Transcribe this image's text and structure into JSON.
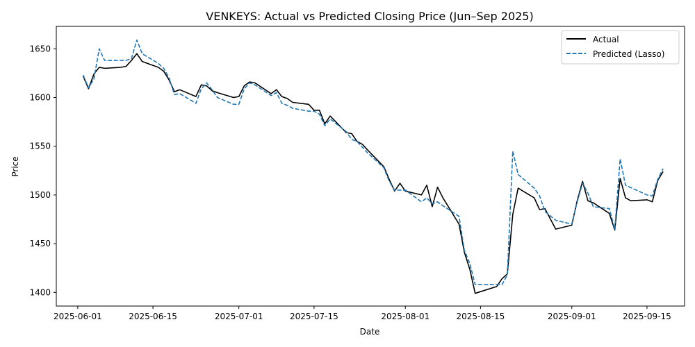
{
  "chart_data": {
    "type": "line",
    "title": "VENKEYS: Actual vs Predicted Closing Price (Jun–Sep 2025)",
    "xlabel": "Date",
    "ylabel": "Price",
    "xlim": [
      "2025-05-28",
      "2025-09-22"
    ],
    "ylim": [
      1386,
      1673
    ],
    "x_ticks": [
      "2025-06-01",
      "2025-06-15",
      "2025-07-01",
      "2025-07-15",
      "2025-08-01",
      "2025-08-15",
      "2025-09-01",
      "2025-09-15"
    ],
    "y_ticks": [
      1400,
      1450,
      1500,
      1550,
      1600,
      1650
    ],
    "grid": false,
    "legend_position": "top-right",
    "colors": {
      "Actual": "#000000",
      "Predicted (Lasso)": "#1f77b4"
    },
    "series": [
      {
        "name": "Actual",
        "style": "solid",
        "points": [
          [
            "2025-06-02",
            1622
          ],
          [
            "2025-06-03",
            1609
          ],
          [
            "2025-06-04",
            1624
          ],
          [
            "2025-06-05",
            1631
          ],
          [
            "2025-06-06",
            1630
          ],
          [
            "2025-06-09",
            1631
          ],
          [
            "2025-06-10",
            1632
          ],
          [
            "2025-06-11",
            1638
          ],
          [
            "2025-06-12",
            1645
          ],
          [
            "2025-06-13",
            1637
          ],
          [
            "2025-06-16",
            1631
          ],
          [
            "2025-06-17",
            1627
          ],
          [
            "2025-06-18",
            1618
          ],
          [
            "2025-06-19",
            1606
          ],
          [
            "2025-06-20",
            1608
          ],
          [
            "2025-06-23",
            1601
          ],
          [
            "2025-06-24",
            1613
          ],
          [
            "2025-06-25",
            1612
          ],
          [
            "2025-06-26",
            1607
          ],
          [
            "2025-06-27",
            1605
          ],
          [
            "2025-06-30",
            1600
          ],
          [
            "2025-07-01",
            1601
          ],
          [
            "2025-07-02",
            1612
          ],
          [
            "2025-07-03",
            1616
          ],
          [
            "2025-07-04",
            1615
          ],
          [
            "2025-07-07",
            1604
          ],
          [
            "2025-07-08",
            1608
          ],
          [
            "2025-07-09",
            1601
          ],
          [
            "2025-07-10",
            1599
          ],
          [
            "2025-07-11",
            1595
          ],
          [
            "2025-07-14",
            1593
          ],
          [
            "2025-07-15",
            1587
          ],
          [
            "2025-07-16",
            1587
          ],
          [
            "2025-07-17",
            1573
          ],
          [
            "2025-07-18",
            1581
          ],
          [
            "2025-07-21",
            1564
          ],
          [
            "2025-07-22",
            1563
          ],
          [
            "2025-07-23",
            1555
          ],
          [
            "2025-07-24",
            1552
          ],
          [
            "2025-07-25",
            1546
          ],
          [
            "2025-07-28",
            1529
          ],
          [
            "2025-07-29",
            1516
          ],
          [
            "2025-07-30",
            1504
          ],
          [
            "2025-07-31",
            1512
          ],
          [
            "2025-08-01",
            1504
          ],
          [
            "2025-08-04",
            1500
          ],
          [
            "2025-08-05",
            1510
          ],
          [
            "2025-08-06",
            1488
          ],
          [
            "2025-08-07",
            1508
          ],
          [
            "2025-08-08",
            1497
          ],
          [
            "2025-08-11",
            1470
          ],
          [
            "2025-08-12",
            1441
          ],
          [
            "2025-08-13",
            1424
          ],
          [
            "2025-08-14",
            1399
          ],
          [
            "2025-08-18",
            1406
          ],
          [
            "2025-08-19",
            1414
          ],
          [
            "2025-08-20",
            1419
          ],
          [
            "2025-08-21",
            1480
          ],
          [
            "2025-08-22",
            1507
          ],
          [
            "2025-08-25",
            1497
          ],
          [
            "2025-08-26",
            1485
          ],
          [
            "2025-08-27",
            1486
          ],
          [
            "2025-08-29",
            1465
          ],
          [
            "2025-09-01",
            1469
          ],
          [
            "2025-09-02",
            1494
          ],
          [
            "2025-09-03",
            1514
          ],
          [
            "2025-09-04",
            1494
          ],
          [
            "2025-09-05",
            1492
          ],
          [
            "2025-09-08",
            1481
          ],
          [
            "2025-09-09",
            1464
          ],
          [
            "2025-09-10",
            1517
          ],
          [
            "2025-09-11",
            1497
          ],
          [
            "2025-09-12",
            1494
          ],
          [
            "2025-09-15",
            1495
          ],
          [
            "2025-09-16",
            1493
          ],
          [
            "2025-09-17",
            1515
          ],
          [
            "2025-09-18",
            1524
          ]
        ]
      },
      {
        "name": "Predicted (Lasso)",
        "style": "dashed",
        "points": [
          [
            "2025-06-02",
            1623
          ],
          [
            "2025-06-03",
            1610
          ],
          [
            "2025-06-04",
            1619
          ],
          [
            "2025-06-05",
            1650
          ],
          [
            "2025-06-06",
            1638
          ],
          [
            "2025-06-09",
            1638
          ],
          [
            "2025-06-10",
            1638
          ],
          [
            "2025-06-11",
            1640
          ],
          [
            "2025-06-12",
            1659
          ],
          [
            "2025-06-13",
            1645
          ],
          [
            "2025-06-16",
            1635
          ],
          [
            "2025-06-17",
            1630
          ],
          [
            "2025-06-18",
            1620
          ],
          [
            "2025-06-19",
            1603
          ],
          [
            "2025-06-20",
            1604
          ],
          [
            "2025-06-23",
            1594
          ],
          [
            "2025-06-24",
            1609
          ],
          [
            "2025-06-25",
            1615
          ],
          [
            "2025-06-26",
            1608
          ],
          [
            "2025-06-27",
            1600
          ],
          [
            "2025-06-30",
            1593
          ],
          [
            "2025-07-01",
            1593
          ],
          [
            "2025-07-02",
            1609
          ],
          [
            "2025-07-03",
            1615
          ],
          [
            "2025-07-04",
            1613
          ],
          [
            "2025-07-07",
            1602
          ],
          [
            "2025-07-08",
            1605
          ],
          [
            "2025-07-09",
            1594
          ],
          [
            "2025-07-10",
            1592
          ],
          [
            "2025-07-11",
            1589
          ],
          [
            "2025-07-14",
            1586
          ],
          [
            "2025-07-15",
            1586
          ],
          [
            "2025-07-16",
            1583
          ],
          [
            "2025-07-17",
            1571
          ],
          [
            "2025-07-18",
            1578
          ],
          [
            "2025-07-21",
            1565
          ],
          [
            "2025-07-22",
            1557
          ],
          [
            "2025-07-23",
            1555
          ],
          [
            "2025-07-24",
            1549
          ],
          [
            "2025-07-25",
            1543
          ],
          [
            "2025-07-28",
            1528
          ],
          [
            "2025-07-29",
            1514
          ],
          [
            "2025-07-30",
            1505
          ],
          [
            "2025-07-31",
            1505
          ],
          [
            "2025-08-01",
            1505
          ],
          [
            "2025-08-04",
            1493
          ],
          [
            "2025-08-05",
            1497
          ],
          [
            "2025-08-06",
            1491
          ],
          [
            "2025-08-07",
            1493
          ],
          [
            "2025-08-08",
            1489
          ],
          [
            "2025-08-11",
            1478
          ],
          [
            "2025-08-12",
            1443
          ],
          [
            "2025-08-13",
            1430
          ],
          [
            "2025-08-14",
            1408
          ],
          [
            "2025-08-18",
            1408
          ],
          [
            "2025-08-19",
            1408
          ],
          [
            "2025-08-20",
            1418
          ],
          [
            "2025-08-21",
            1545
          ],
          [
            "2025-08-22",
            1521
          ],
          [
            "2025-08-25",
            1507
          ],
          [
            "2025-08-26",
            1499
          ],
          [
            "2025-08-27",
            1483
          ],
          [
            "2025-08-29",
            1474
          ],
          [
            "2025-09-01",
            1470
          ],
          [
            "2025-09-02",
            1493
          ],
          [
            "2025-09-03",
            1512
          ],
          [
            "2025-09-04",
            1502
          ],
          [
            "2025-09-05",
            1488
          ],
          [
            "2025-09-08",
            1486
          ],
          [
            "2025-09-09",
            1465
          ],
          [
            "2025-09-10",
            1537
          ],
          [
            "2025-09-11",
            1510
          ],
          [
            "2025-09-15",
            1500
          ],
          [
            "2025-09-16",
            1499
          ],
          [
            "2025-09-17",
            1516
          ],
          [
            "2025-09-18",
            1527
          ]
        ]
      }
    ]
  }
}
